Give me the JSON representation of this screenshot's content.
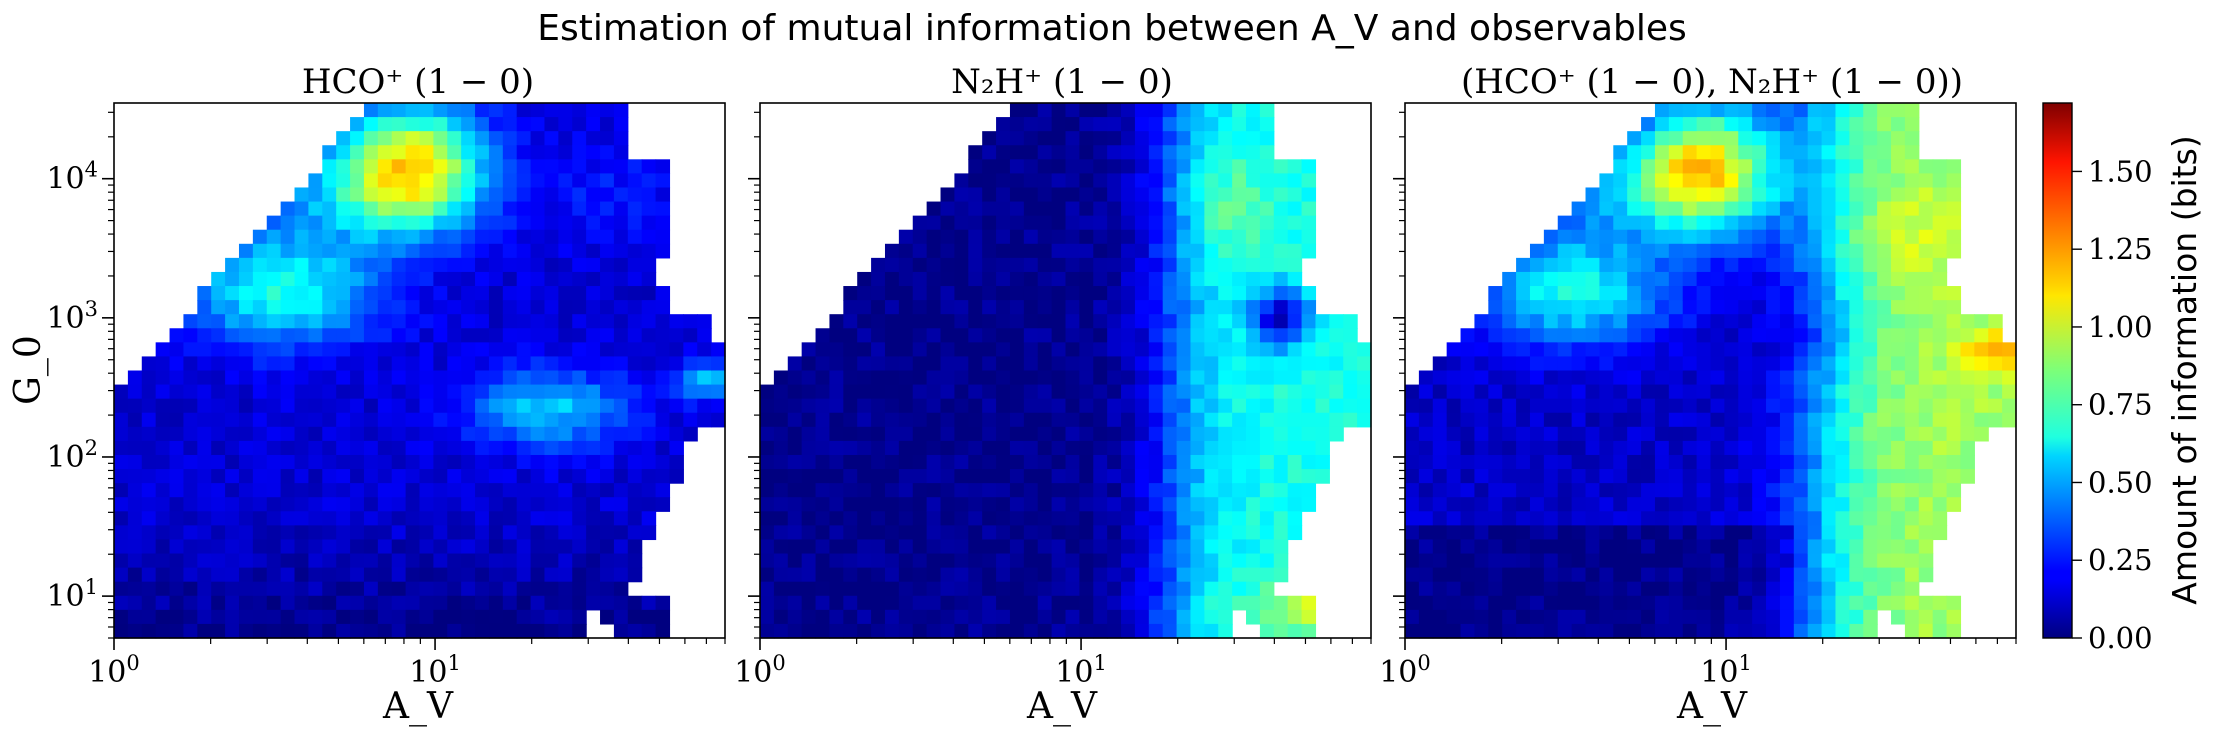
{
  "chart_data": [
    {
      "type": "heatmap",
      "panel": "HCO+",
      "title": "HCO⁺ (1 − 0)",
      "suptitle": "Estimation of mutual information between A_V and observables",
      "xlabel": "A_V",
      "ylabel": "G_0",
      "xscale": "log",
      "yscale": "log",
      "xlim": [
        1,
        80
      ],
      "ylim": [
        5,
        35000
      ],
      "x_ticks": [
        "10^0",
        "10^1"
      ],
      "y_ticks": [
        "10^1",
        "10^2",
        "10^3",
        "10^4"
      ],
      "colormap": "jet",
      "value_range_bits": [
        0.0,
        1.72
      ],
      "regions_bits": [
        {
          "region": "A_V 6-20, G_0 5000-35000 (top ridge)",
          "value": 0.95
        },
        {
          "region": "A_V 2-5, G_0 300-3000",
          "value": 0.6
        },
        {
          "region": "A_V 15-40, G_0 100-300",
          "value": 0.5
        },
        {
          "region": "A_V 60-80, G_0 ~400",
          "value": 0.55
        },
        {
          "region": "G_0 < 30",
          "value": 0.05
        },
        {
          "region": "background (mid)",
          "value": 0.2
        }
      ]
    },
    {
      "type": "heatmap",
      "panel": "N2H+",
      "title": "N₂H⁺ (1 − 0)",
      "xlabel": "A_V",
      "xscale": "log",
      "yscale": "log",
      "xlim": [
        1,
        80
      ],
      "ylim": [
        5,
        35000
      ],
      "x_ticks": [
        "10^0",
        "10^1"
      ],
      "colormap": "jet",
      "value_range_bits": [
        0.0,
        1.72
      ],
      "regions_bits": [
        {
          "region": "A_V < 10",
          "value": 0.03
        },
        {
          "region": "A_V 25-60, all G_0",
          "value": 0.6
        },
        {
          "region": "A_V 25-35, G_0 3000-10000",
          "value": 0.75
        },
        {
          "region": "A_V ~45, G_0 ~1000 (dip)",
          "value": 0.2
        },
        {
          "region": "A_V ~50, G_0 ~8 (bottom)",
          "value": 0.75
        }
      ]
    },
    {
      "type": "heatmap",
      "panel": "joint",
      "title": "(HCO⁺ (1 − 0), N₂H⁺ (1 − 0))",
      "xlabel": "A_V",
      "xscale": "log",
      "yscale": "log",
      "xlim": [
        1,
        80
      ],
      "ylim": [
        5,
        35000
      ],
      "x_ticks": [
        "10^0",
        "10^1"
      ],
      "colormap": "jet",
      "value_range_bits": [
        0.0,
        1.72
      ],
      "regions_bits": [
        {
          "region": "A_V 6-20, G_0 5000-35000 (top ridge)",
          "value": 1.0
        },
        {
          "region": "A_V 25-80, G_0 30-10000",
          "value": 0.9
        },
        {
          "region": "A_V ~70, G_0 ~500 (max)",
          "value": 1.2
        },
        {
          "region": "A_V 2-5, G_0 300-3000",
          "value": 0.6
        },
        {
          "region": "G_0 < 30, A_V < 15",
          "value": 0.05
        }
      ]
    },
    {
      "type": "colorbar",
      "label": "Amount of information (bits)",
      "ticks": [
        "0.00",
        "0.25",
        "0.50",
        "0.75",
        "1.00",
        "1.25",
        "1.50"
      ],
      "range": [
        0.0,
        1.72
      ],
      "colormap": "jet"
    }
  ]
}
